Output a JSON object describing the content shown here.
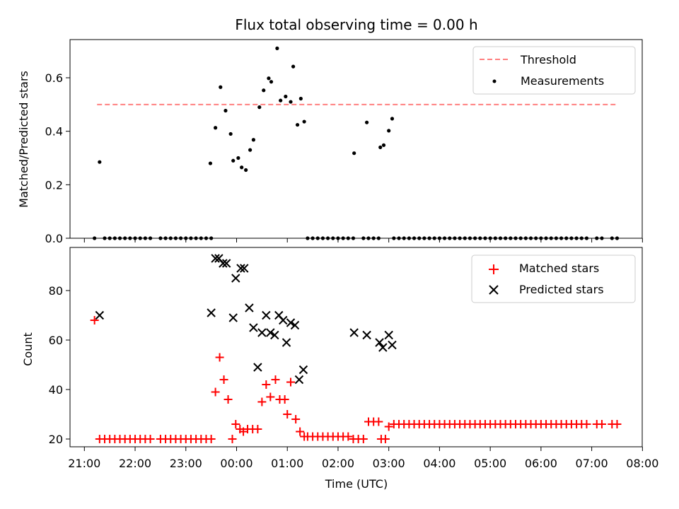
{
  "chart_data": [
    {
      "type": "scatter",
      "title": "Flux total observing time = 0.00 h",
      "xlabel": "",
      "ylabel": "Matched/Predicted stars",
      "ylim": [
        0.0,
        0.75
      ],
      "yticks": [
        0.0,
        0.2,
        0.4,
        0.6
      ],
      "ytick_labels": [
        "0.0",
        "0.2",
        "0.4",
        "0.6"
      ],
      "xlim": [
        "21:00",
        "08:00"
      ],
      "xticks": [
        "21:00",
        "22:00",
        "23:00",
        "00:00",
        "01:00",
        "02:00",
        "03:00",
        "04:00",
        "05:00",
        "06:00",
        "07:00",
        "08:00"
      ],
      "legend_position": "top-right",
      "threshold": {
        "name": "Threshold",
        "value": 0.5,
        "x_start": "21:15",
        "x_end": "07:30",
        "color": "#ff7f7f",
        "style": "dashed"
      },
      "series": [
        {
          "name": "Measurements",
          "color": "#000000",
          "marker": "dot",
          "points": [
            [
              "21:12",
              0
            ],
            [
              "21:18",
              0.285
            ],
            [
              "21:24",
              0
            ],
            [
              "21:30",
              0
            ],
            [
              "21:36",
              0
            ],
            [
              "21:42",
              0
            ],
            [
              "21:48",
              0
            ],
            [
              "21:54",
              0
            ],
            [
              "22:00",
              0
            ],
            [
              "22:06",
              0
            ],
            [
              "22:12",
              0
            ],
            [
              "22:18",
              0
            ],
            [
              "22:30",
              0
            ],
            [
              "22:36",
              0
            ],
            [
              "22:42",
              0
            ],
            [
              "22:48",
              0
            ],
            [
              "22:54",
              0
            ],
            [
              "23:00",
              0
            ],
            [
              "23:06",
              0
            ],
            [
              "23:12",
              0
            ],
            [
              "23:18",
              0
            ],
            [
              "23:24",
              0
            ],
            [
              "23:30",
              0
            ],
            [
              "23:29",
              0.28
            ],
            [
              "23:35",
              0.413
            ],
            [
              "23:41",
              0.565
            ],
            [
              "23:47",
              0.477
            ],
            [
              "23:53",
              0.39
            ],
            [
              "23:56",
              0.29
            ],
            [
              "00:02",
              0.3
            ],
            [
              "00:06",
              0.265
            ],
            [
              "00:11",
              0.255
            ],
            [
              "00:16",
              0.33
            ],
            [
              "00:20",
              0.368
            ],
            [
              "00:27",
              0.49
            ],
            [
              "00:32",
              0.553
            ],
            [
              "00:38",
              0.598
            ],
            [
              "00:41",
              0.585
            ],
            [
              "00:48",
              0.71
            ],
            [
              "00:52",
              0.515
            ],
            [
              "00:58",
              0.53
            ],
            [
              "01:04",
              0.51
            ],
            [
              "01:07",
              0.642
            ],
            [
              "01:12",
              0.424
            ],
            [
              "01:16",
              0.522
            ],
            [
              "01:20",
              0.436
            ],
            [
              "01:24",
              0
            ],
            [
              "01:30",
              0
            ],
            [
              "01:36",
              0
            ],
            [
              "01:42",
              0
            ],
            [
              "01:48",
              0
            ],
            [
              "01:54",
              0
            ],
            [
              "02:00",
              0
            ],
            [
              "02:06",
              0
            ],
            [
              "02:12",
              0
            ],
            [
              "02:18",
              0
            ],
            [
              "02:30",
              0
            ],
            [
              "02:36",
              0
            ],
            [
              "02:42",
              0
            ],
            [
              "02:48",
              0
            ],
            [
              "02:19",
              0.318
            ],
            [
              "02:34",
              0.433
            ],
            [
              "02:50",
              0.34
            ],
            [
              "02:54",
              0.348
            ],
            [
              "03:00",
              0.402
            ],
            [
              "03:04",
              0.447
            ],
            [
              "03:06",
              0
            ],
            [
              "03:12",
              0
            ],
            [
              "03:18",
              0
            ],
            [
              "03:24",
              0
            ],
            [
              "03:30",
              0
            ],
            [
              "03:36",
              0
            ],
            [
              "03:42",
              0
            ],
            [
              "03:48",
              0
            ],
            [
              "03:54",
              0
            ],
            [
              "04:00",
              0
            ],
            [
              "04:06",
              0
            ],
            [
              "04:12",
              0
            ],
            [
              "04:18",
              0
            ],
            [
              "04:24",
              0
            ],
            [
              "04:30",
              0
            ],
            [
              "04:36",
              0
            ],
            [
              "04:42",
              0
            ],
            [
              "04:48",
              0
            ],
            [
              "04:54",
              0
            ],
            [
              "05:00",
              0
            ],
            [
              "05:06",
              0
            ],
            [
              "05:12",
              0
            ],
            [
              "05:18",
              0
            ],
            [
              "05:24",
              0
            ],
            [
              "05:30",
              0
            ],
            [
              "05:36",
              0
            ],
            [
              "05:42",
              0
            ],
            [
              "05:48",
              0
            ],
            [
              "05:54",
              0
            ],
            [
              "06:00",
              0
            ],
            [
              "06:06",
              0
            ],
            [
              "06:12",
              0
            ],
            [
              "06:18",
              0
            ],
            [
              "06:24",
              0
            ],
            [
              "06:30",
              0
            ],
            [
              "06:36",
              0
            ],
            [
              "06:42",
              0
            ],
            [
              "06:48",
              0
            ],
            [
              "06:54",
              0
            ],
            [
              "07:06",
              0
            ],
            [
              "07:12",
              0
            ],
            [
              "07:24",
              0
            ],
            [
              "07:30",
              0
            ]
          ]
        }
      ]
    },
    {
      "type": "scatter",
      "xlabel": "Time (UTC)",
      "ylabel": "Count",
      "ylim": [
        16,
        96
      ],
      "yticks": [
        20,
        40,
        60,
        80
      ],
      "ytick_labels": [
        "20",
        "40",
        "60",
        "80"
      ],
      "xlim": [
        "21:00",
        "08:00"
      ],
      "xticks": [
        "21:00",
        "22:00",
        "23:00",
        "00:00",
        "01:00",
        "02:00",
        "03:00",
        "04:00",
        "05:00",
        "06:00",
        "07:00",
        "08:00"
      ],
      "xtick_labels": [
        "21:00",
        "22:00",
        "23:00",
        "00:00",
        "01:00",
        "02:00",
        "03:00",
        "04:00",
        "05:00",
        "06:00",
        "07:00",
        "08:00"
      ],
      "legend_position": "top-right",
      "series": [
        {
          "name": "Matched stars",
          "color": "#ff0000",
          "marker": "plus",
          "points": [
            [
              "21:12",
              68
            ],
            [
              "21:18",
              20
            ],
            [
              "21:24",
              20
            ],
            [
              "21:30",
              20
            ],
            [
              "21:36",
              20
            ],
            [
              "21:42",
              20
            ],
            [
              "21:48",
              20
            ],
            [
              "21:54",
              20
            ],
            [
              "22:00",
              20
            ],
            [
              "22:06",
              20
            ],
            [
              "22:12",
              20
            ],
            [
              "22:18",
              20
            ],
            [
              "22:30",
              20
            ],
            [
              "22:36",
              20
            ],
            [
              "22:42",
              20
            ],
            [
              "22:48",
              20
            ],
            [
              "22:54",
              20
            ],
            [
              "23:00",
              20
            ],
            [
              "23:06",
              20
            ],
            [
              "23:12",
              20
            ],
            [
              "23:18",
              20
            ],
            [
              "23:24",
              20
            ],
            [
              "23:30",
              20
            ],
            [
              "23:35",
              39
            ],
            [
              "23:40",
              53
            ],
            [
              "23:45",
              44
            ],
            [
              "23:50",
              36
            ],
            [
              "23:55",
              20
            ],
            [
              "23:59",
              26
            ],
            [
              "00:04",
              24
            ],
            [
              "00:08",
              23
            ],
            [
              "00:13",
              24
            ],
            [
              "00:19",
              24
            ],
            [
              "00:25",
              24
            ],
            [
              "00:30",
              35
            ],
            [
              "00:35",
              42
            ],
            [
              "00:40",
              37
            ],
            [
              "00:46",
              44
            ],
            [
              "00:51",
              36
            ],
            [
              "00:57",
              36
            ],
            [
              "01:00",
              30
            ],
            [
              "01:04",
              43
            ],
            [
              "01:10",
              28
            ],
            [
              "01:15",
              23
            ],
            [
              "01:20",
              21
            ],
            [
              "01:24",
              21
            ],
            [
              "01:30",
              21
            ],
            [
              "01:36",
              21
            ],
            [
              "01:42",
              21
            ],
            [
              "01:48",
              21
            ],
            [
              "01:54",
              21
            ],
            [
              "02:00",
              21
            ],
            [
              "02:06",
              21
            ],
            [
              "02:12",
              21
            ],
            [
              "02:18",
              20
            ],
            [
              "02:24",
              20
            ],
            [
              "02:30",
              20
            ],
            [
              "02:36",
              27
            ],
            [
              "02:42",
              27
            ],
            [
              "02:48",
              27
            ],
            [
              "02:51",
              20
            ],
            [
              "02:56",
              20
            ],
            [
              "03:00",
              25
            ],
            [
              "03:06",
              26
            ],
            [
              "03:12",
              26
            ],
            [
              "03:18",
              26
            ],
            [
              "03:24",
              26
            ],
            [
              "03:30",
              26
            ],
            [
              "03:36",
              26
            ],
            [
              "03:42",
              26
            ],
            [
              "03:48",
              26
            ],
            [
              "03:54",
              26
            ],
            [
              "04:00",
              26
            ],
            [
              "04:06",
              26
            ],
            [
              "04:12",
              26
            ],
            [
              "04:18",
              26
            ],
            [
              "04:24",
              26
            ],
            [
              "04:30",
              26
            ],
            [
              "04:36",
              26
            ],
            [
              "04:42",
              26
            ],
            [
              "04:48",
              26
            ],
            [
              "04:54",
              26
            ],
            [
              "05:00",
              26
            ],
            [
              "05:06",
              26
            ],
            [
              "05:12",
              26
            ],
            [
              "05:18",
              26
            ],
            [
              "05:24",
              26
            ],
            [
              "05:30",
              26
            ],
            [
              "05:36",
              26
            ],
            [
              "05:42",
              26
            ],
            [
              "05:48",
              26
            ],
            [
              "05:54",
              26
            ],
            [
              "06:00",
              26
            ],
            [
              "06:06",
              26
            ],
            [
              "06:12",
              26
            ],
            [
              "06:18",
              26
            ],
            [
              "06:24",
              26
            ],
            [
              "06:30",
              26
            ],
            [
              "06:36",
              26
            ],
            [
              "06:42",
              26
            ],
            [
              "06:48",
              26
            ],
            [
              "06:54",
              26
            ],
            [
              "07:06",
              26
            ],
            [
              "07:12",
              26
            ],
            [
              "07:24",
              26
            ],
            [
              "07:30",
              26
            ]
          ]
        },
        {
          "name": "Predicted stars",
          "color": "#000000",
          "marker": "x",
          "points": [
            [
              "21:18",
              70
            ],
            [
              "23:30",
              71
            ],
            [
              "23:35",
              93
            ],
            [
              "23:39",
              93
            ],
            [
              "23:44",
              91
            ],
            [
              "23:48",
              91
            ],
            [
              "23:56",
              69
            ],
            [
              "23:59",
              85
            ],
            [
              "00:05",
              89
            ],
            [
              "00:09",
              89
            ],
            [
              "00:15",
              73
            ],
            [
              "00:20",
              65
            ],
            [
              "00:25",
              49
            ],
            [
              "00:30",
              63
            ],
            [
              "00:35",
              70
            ],
            [
              "00:40",
              63
            ],
            [
              "00:45",
              62
            ],
            [
              "00:50",
              70
            ],
            [
              "00:55",
              68
            ],
            [
              "00:59",
              59
            ],
            [
              "01:04",
              67
            ],
            [
              "01:09",
              66
            ],
            [
              "01:14",
              44
            ],
            [
              "01:19",
              48
            ],
            [
              "02:19",
              63
            ],
            [
              "02:34",
              62
            ],
            [
              "02:49",
              59
            ],
            [
              "02:53",
              57
            ],
            [
              "03:00",
              62
            ],
            [
              "03:04",
              58
            ]
          ]
        }
      ]
    }
  ]
}
